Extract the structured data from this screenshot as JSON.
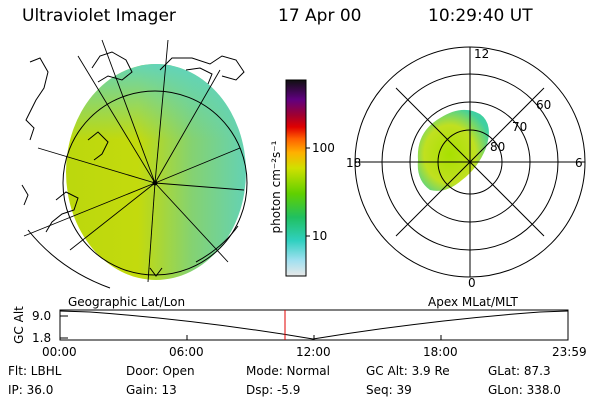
{
  "header": {
    "instrument": "Ultraviolet Imager",
    "date": "17 Apr 00",
    "time": "10:29:40 UT"
  },
  "colorbar": {
    "unit_label": "photon cm⁻²s⁻¹",
    "ticks": [
      "100",
      "10"
    ],
    "scale": "log"
  },
  "left_panel": {
    "label": "Geographic Lat/Lon"
  },
  "right_panel": {
    "label": "Apex MLat/MLT",
    "mlt_labels": {
      "top": "12",
      "bottom": "0",
      "left": "18",
      "right": "6"
    },
    "lat_labels": [
      "60",
      "70",
      "80"
    ]
  },
  "altitude_plot": {
    "ylabel": "GC Alt",
    "yticks": [
      "9.0",
      "1.8"
    ],
    "xticks": [
      "00:00",
      "06:00",
      "12:00",
      "18:00",
      "23:59"
    ],
    "marker_color": "#e00000"
  },
  "info": {
    "row1": {
      "flt": "Flt: LBHL",
      "door": "Door: Open",
      "mode": "Mode: Normal",
      "gcalt": "GC Alt: 3.9 Re",
      "glat": "GLat:  87.3"
    },
    "row2": {
      "ip": "IP: 36.0",
      "gain": "Gain: 13",
      "dsp": "Dsp:    -5.9",
      "seq": "Seq: 39",
      "glon": "GLon: 338.0"
    }
  }
}
